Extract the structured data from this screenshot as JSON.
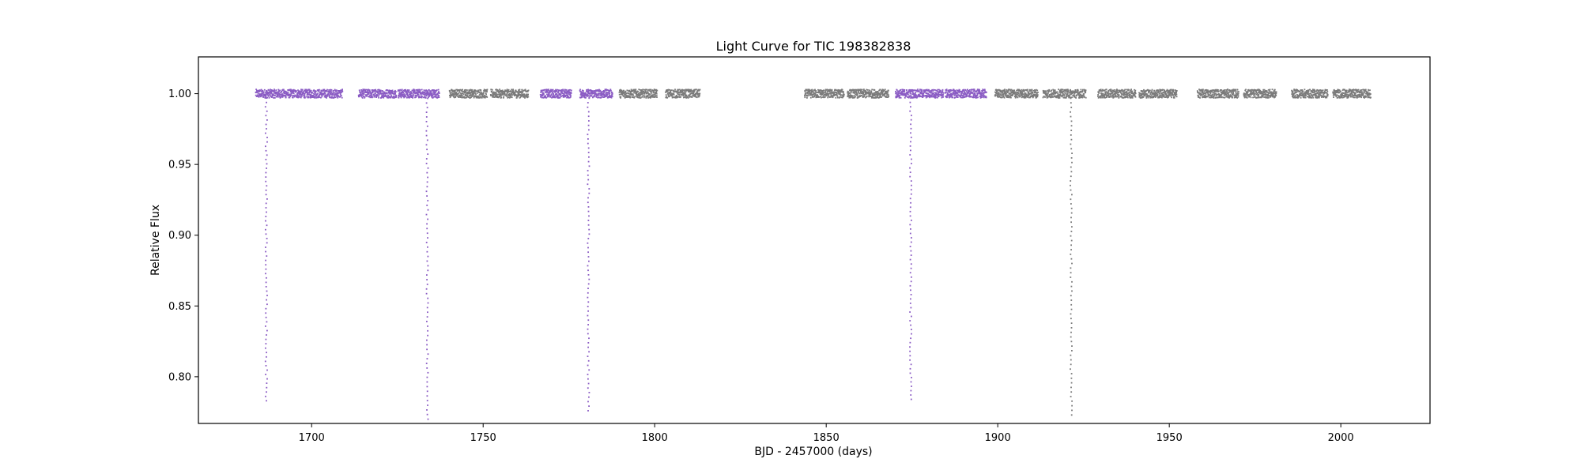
{
  "chart_data": {
    "type": "scatter",
    "title": "Light Curve for TIC 198382838",
    "xlabel": "BJD - 2457000 (days)",
    "ylabel": "Relative Flux",
    "xlim": [
      1667,
      2026
    ],
    "ylim": [
      0.767,
      1.026
    ],
    "xticks": [
      1700,
      1750,
      1800,
      1850,
      1900,
      1950,
      2000
    ],
    "yticks": [
      0.8,
      0.85,
      0.9,
      0.95,
      1.0
    ],
    "grid": false,
    "legend": "none",
    "segments": [
      {
        "start": 1683.5,
        "end": 1708.8,
        "color": "purple"
      },
      {
        "start": 1713.5,
        "end": 1724.5,
        "color": "purple"
      },
      {
        "start": 1725.0,
        "end": 1737.0,
        "color": "purple"
      },
      {
        "start": 1740.0,
        "end": 1751.0,
        "color": "gray"
      },
      {
        "start": 1752.0,
        "end": 1763.0,
        "color": "gray"
      },
      {
        "start": 1766.5,
        "end": 1775.5,
        "color": "purple"
      },
      {
        "start": 1778.0,
        "end": 1787.5,
        "color": "purple"
      },
      {
        "start": 1789.5,
        "end": 1800.5,
        "color": "gray"
      },
      {
        "start": 1803.0,
        "end": 1813.0,
        "color": "gray"
      },
      {
        "start": 1843.5,
        "end": 1855.0,
        "color": "gray"
      },
      {
        "start": 1856.0,
        "end": 1868.0,
        "color": "gray"
      },
      {
        "start": 1870.0,
        "end": 1884.0,
        "color": "purple"
      },
      {
        "start": 1884.5,
        "end": 1896.5,
        "color": "purple"
      },
      {
        "start": 1899.0,
        "end": 1911.5,
        "color": "gray"
      },
      {
        "start": 1913.0,
        "end": 1925.5,
        "color": "gray"
      },
      {
        "start": 1929.0,
        "end": 1940.0,
        "color": "gray"
      },
      {
        "start": 1941.0,
        "end": 1952.0,
        "color": "gray"
      },
      {
        "start": 1958.0,
        "end": 1970.0,
        "color": "gray"
      },
      {
        "start": 1971.5,
        "end": 1981.0,
        "color": "gray"
      },
      {
        "start": 1985.5,
        "end": 1996.0,
        "color": "gray"
      },
      {
        "start": 1997.5,
        "end": 2008.5,
        "color": "gray"
      }
    ],
    "eclipses": [
      {
        "time": 1686.8,
        "min_flux": 0.783,
        "color": "purple"
      },
      {
        "time": 1733.7,
        "min_flux": 0.77,
        "color": "purple"
      },
      {
        "time": 1780.7,
        "min_flux": 0.776,
        "color": "purple"
      },
      {
        "time": 1874.6,
        "min_flux": 0.784,
        "color": "purple"
      },
      {
        "time": 1921.4,
        "min_flux": 0.773,
        "color": "gray"
      }
    ],
    "colors": {
      "purple": "#8b5cc4",
      "gray": "#7b7b7b"
    }
  }
}
